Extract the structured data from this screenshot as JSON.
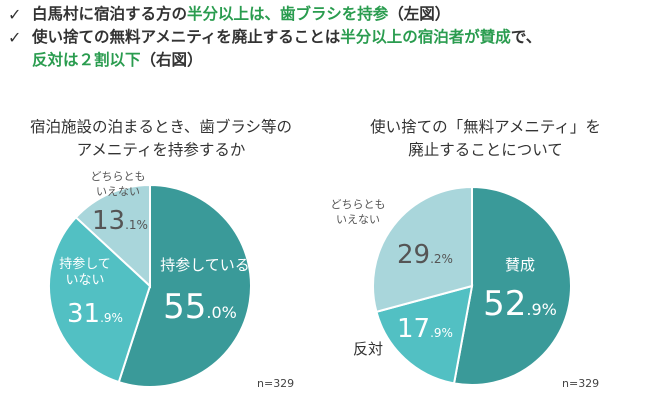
{
  "bullets": [
    {
      "parts": [
        {
          "text": "白馬村に宿泊する方の",
          "hl": false
        },
        {
          "text": "半分以上は、歯ブラシを持参",
          "hl": true
        },
        {
          "text": "（左図）",
          "hl": false
        }
      ]
    },
    {
      "parts": [
        {
          "text": "使い捨ての無料アメニティを廃止することは",
          "hl": false
        },
        {
          "text": "半分以上の宿泊者が賛成",
          "hl": true
        },
        {
          "text": "で、",
          "hl": false
        },
        {
          "text": "反対は２割以下",
          "hl": true
        },
        {
          "text": "（右図）",
          "hl": false
        }
      ]
    }
  ],
  "check_mark": "✓",
  "chart_data": [
    {
      "type": "pie",
      "title": "宿泊施設の泊まるとき、歯ブラシ等のアメニティを持参するか",
      "title_lines": [
        "宿泊施設の泊まるとき、歯ブラシ等の",
        "アメニティを持参するか"
      ],
      "slices": [
        {
          "label": "持参している",
          "label_lines": [
            "持参している"
          ],
          "value": 55.0,
          "int": "55",
          "dec": ".0%",
          "color": "#3a9a99",
          "label_color": "#ffffff"
        },
        {
          "label": "持参していない",
          "label_lines": [
            "持参して",
            "いない"
          ],
          "value": 31.9,
          "int": "31",
          "dec": ".9%",
          "color": "#52c0c3",
          "label_color": "#ffffff"
        },
        {
          "label": "どちらともいえない",
          "label_lines": [
            "どちらとも",
            "いえない"
          ],
          "value": 13.1,
          "int": "13",
          "dec": ".1%",
          "color": "#a9d6db",
          "label_color": "#555555"
        }
      ],
      "note": "n=329"
    },
    {
      "type": "pie",
      "title": "使い捨ての「無料アメニティ」を廃止することについて",
      "title_lines": [
        "使い捨ての「無料アメニティ」を",
        "廃止することについて"
      ],
      "slices": [
        {
          "label": "賛成",
          "label_lines": [
            "賛成"
          ],
          "value": 52.9,
          "int": "52",
          "dec": ".9%",
          "color": "#3a9a99",
          "label_color": "#ffffff"
        },
        {
          "label": "反対",
          "label_lines": [
            "反対"
          ],
          "value": 17.9,
          "int": "17",
          "dec": ".9%",
          "color": "#52c0c3",
          "label_color": "#333333"
        },
        {
          "label": "どちらともいえない",
          "label_lines": [
            "どちらとも",
            "いえない"
          ],
          "value": 29.2,
          "int": "29",
          "dec": ".2%",
          "color": "#a9d6db",
          "label_color": "#555555"
        }
      ],
      "note": "n=329"
    }
  ]
}
